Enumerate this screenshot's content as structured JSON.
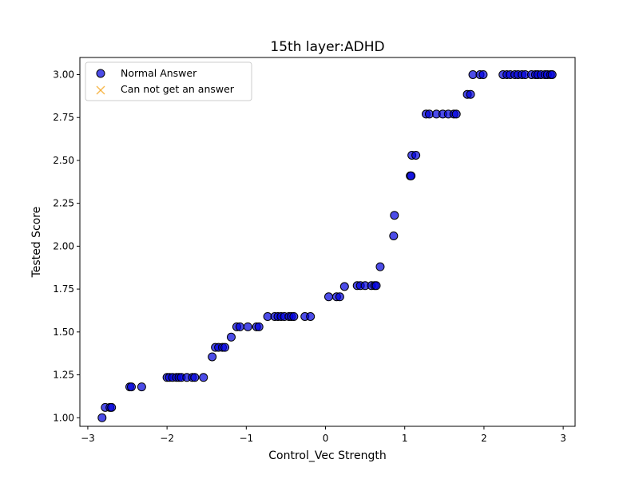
{
  "chart_data": {
    "type": "scatter",
    "title": "15th layer:ADHD",
    "xlabel": "Control_Vec Strength",
    "ylabel": "Tested Score",
    "xlim": [
      -3.1,
      3.15
    ],
    "ylim": [
      0.95,
      3.1
    ],
    "x_ticks": [
      -3,
      -2,
      -1,
      0,
      1,
      2,
      3
    ],
    "x_tick_labels": [
      "−3",
      "−2",
      "−1",
      "0",
      "1",
      "2",
      "3"
    ],
    "y_ticks": [
      1.0,
      1.25,
      1.5,
      1.75,
      2.0,
      2.25,
      2.5,
      2.75,
      3.0
    ],
    "y_tick_labels": [
      "1.00",
      "1.25",
      "1.50",
      "1.75",
      "2.00",
      "2.25",
      "2.50",
      "2.75",
      "3.00"
    ],
    "grid": false,
    "legend_position": "top-left",
    "series": [
      {
        "name": "Normal Answer",
        "marker": "circle",
        "color": "#0000dd",
        "edge_color": "#000000",
        "points": [
          [
            -2.82,
            1.0
          ],
          [
            -2.78,
            1.06
          ],
          [
            -2.72,
            1.06
          ],
          [
            -2.7,
            1.06
          ],
          [
            -2.47,
            1.18
          ],
          [
            -2.45,
            1.18
          ],
          [
            -2.32,
            1.18
          ],
          [
            -2.0,
            1.235
          ],
          [
            -1.97,
            1.235
          ],
          [
            -1.93,
            1.235
          ],
          [
            -1.88,
            1.235
          ],
          [
            -1.85,
            1.235
          ],
          [
            -1.82,
            1.235
          ],
          [
            -1.75,
            1.235
          ],
          [
            -1.68,
            1.235
          ],
          [
            -1.65,
            1.235
          ],
          [
            -1.54,
            1.235
          ],
          [
            -1.43,
            1.355
          ],
          [
            -1.39,
            1.41
          ],
          [
            -1.35,
            1.41
          ],
          [
            -1.3,
            1.41
          ],
          [
            -1.27,
            1.41
          ],
          [
            -1.19,
            1.47
          ],
          [
            -1.12,
            1.53
          ],
          [
            -1.08,
            1.53
          ],
          [
            -0.98,
            1.53
          ],
          [
            -0.87,
            1.53
          ],
          [
            -0.84,
            1.53
          ],
          [
            -0.73,
            1.59
          ],
          [
            -0.64,
            1.59
          ],
          [
            -0.6,
            1.59
          ],
          [
            -0.56,
            1.59
          ],
          [
            -0.52,
            1.59
          ],
          [
            -0.46,
            1.59
          ],
          [
            -0.43,
            1.59
          ],
          [
            -0.4,
            1.59
          ],
          [
            -0.26,
            1.59
          ],
          [
            -0.19,
            1.59
          ],
          [
            0.04,
            1.705
          ],
          [
            0.14,
            1.705
          ],
          [
            0.18,
            1.705
          ],
          [
            0.24,
            1.765
          ],
          [
            0.4,
            1.77
          ],
          [
            0.44,
            1.77
          ],
          [
            0.5,
            1.77
          ],
          [
            0.58,
            1.77
          ],
          [
            0.62,
            1.77
          ],
          [
            0.64,
            1.77
          ],
          [
            0.69,
            1.88
          ],
          [
            0.86,
            2.06
          ],
          [
            0.87,
            2.18
          ],
          [
            1.07,
            2.41
          ],
          [
            1.08,
            2.41
          ],
          [
            1.09,
            2.53
          ],
          [
            1.14,
            2.53
          ],
          [
            1.27,
            2.77
          ],
          [
            1.31,
            2.77
          ],
          [
            1.4,
            2.77
          ],
          [
            1.48,
            2.77
          ],
          [
            1.55,
            2.77
          ],
          [
            1.62,
            2.77
          ],
          [
            1.65,
            2.77
          ],
          [
            1.79,
            2.885
          ],
          [
            1.83,
            2.885
          ],
          [
            1.86,
            3.0
          ],
          [
            1.95,
            3.0
          ],
          [
            1.99,
            3.0
          ],
          [
            2.24,
            3.0
          ],
          [
            2.29,
            3.0
          ],
          [
            2.33,
            3.0
          ],
          [
            2.39,
            3.0
          ],
          [
            2.43,
            3.0
          ],
          [
            2.48,
            3.0
          ],
          [
            2.52,
            3.0
          ],
          [
            2.6,
            3.0
          ],
          [
            2.65,
            3.0
          ],
          [
            2.68,
            3.0
          ],
          [
            2.72,
            3.0
          ],
          [
            2.77,
            3.0
          ],
          [
            2.8,
            3.0
          ],
          [
            2.84,
            3.0
          ],
          [
            2.86,
            3.0
          ]
        ]
      },
      {
        "name": "Can not get an answer",
        "marker": "x",
        "color": "#f5a623",
        "points": []
      }
    ]
  }
}
